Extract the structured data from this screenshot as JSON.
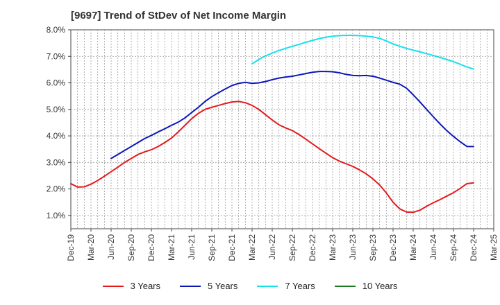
{
  "chart_data": {
    "type": "line",
    "title": "[9697]  Trend of StDev of Net Income Margin",
    "xlabel": "",
    "ylabel": "",
    "x_ticks": [
      "Dec-19",
      "Mar-20",
      "Jun-20",
      "Sep-20",
      "Dec-20",
      "Mar-21",
      "Jun-21",
      "Sep-21",
      "Dec-21",
      "Mar-22",
      "Jun-22",
      "Sep-22",
      "Dec-22",
      "Mar-23",
      "Jun-23",
      "Sep-23",
      "Dec-23",
      "Mar-24",
      "Jun-24",
      "Sep-24",
      "Dec-24",
      "Mar-25"
    ],
    "y_ticks": [
      "1.0%",
      "2.0%",
      "3.0%",
      "4.0%",
      "5.0%",
      "6.0%",
      "7.0%",
      "8.0%"
    ],
    "ylim": [
      0.5,
      8.0
    ],
    "grid": true,
    "legend_position": "bottom",
    "series": [
      {
        "name": "3 Years",
        "color": "#e31a1c",
        "x": [
          "Dec-19",
          "Jan-20",
          "Feb-20",
          "Mar-20",
          "Apr-20",
          "May-20",
          "Jun-20",
          "Jul-20",
          "Aug-20",
          "Sep-20",
          "Oct-20",
          "Nov-20",
          "Dec-20",
          "Jan-21",
          "Feb-21",
          "Mar-21",
          "Apr-21",
          "May-21",
          "Jun-21",
          "Jul-21",
          "Aug-21",
          "Sep-21",
          "Oct-21",
          "Nov-21",
          "Dec-21",
          "Jan-22",
          "Feb-22",
          "Mar-22",
          "Apr-22",
          "May-22",
          "Jun-22",
          "Jul-22",
          "Aug-22",
          "Sep-22",
          "Oct-22",
          "Nov-22",
          "Dec-22",
          "Jan-23",
          "Feb-23",
          "Mar-23",
          "Apr-23",
          "May-23",
          "Jun-23",
          "Jul-23",
          "Aug-23",
          "Sep-23",
          "Oct-23",
          "Nov-23",
          "Dec-23",
          "Jan-24",
          "Feb-24",
          "Mar-24",
          "Apr-24",
          "May-24",
          "Jun-24",
          "Jul-24",
          "Aug-24",
          "Sep-24",
          "Oct-24",
          "Nov-24",
          "Dec-24"
        ],
        "values": [
          2.2,
          2.07,
          2.08,
          2.18,
          2.32,
          2.48,
          2.65,
          2.82,
          3.0,
          3.15,
          3.3,
          3.4,
          3.48,
          3.6,
          3.75,
          3.92,
          4.15,
          4.4,
          4.65,
          4.85,
          5.0,
          5.08,
          5.15,
          5.22,
          5.28,
          5.3,
          5.25,
          5.15,
          5.0,
          4.8,
          4.6,
          4.42,
          4.3,
          4.2,
          4.05,
          3.88,
          3.7,
          3.52,
          3.35,
          3.18,
          3.05,
          2.95,
          2.85,
          2.72,
          2.57,
          2.38,
          2.15,
          1.85,
          1.5,
          1.25,
          1.13,
          1.12,
          1.2,
          1.35,
          1.48,
          1.6,
          1.73,
          1.86,
          2.02,
          2.2,
          2.23
        ]
      },
      {
        "name": "5 Years",
        "color": "#0a17b8",
        "x": [
          "Dec-19",
          "Jan-20",
          "Feb-20",
          "Mar-20",
          "Apr-20",
          "May-20",
          "Jun-20",
          "Jul-20",
          "Aug-20",
          "Sep-20",
          "Oct-20",
          "Nov-20",
          "Dec-20",
          "Jan-21",
          "Feb-21",
          "Mar-21",
          "Apr-21",
          "May-21",
          "Jun-21",
          "Jul-21",
          "Aug-21",
          "Sep-21",
          "Oct-21",
          "Nov-21",
          "Dec-21",
          "Jan-22",
          "Feb-22",
          "Mar-22",
          "Apr-22",
          "May-22",
          "Jun-22",
          "Jul-22",
          "Aug-22",
          "Sep-22",
          "Oct-22",
          "Nov-22",
          "Dec-22",
          "Jan-23",
          "Feb-23",
          "Mar-23",
          "Apr-23",
          "May-23",
          "Jun-23",
          "Jul-23",
          "Aug-23",
          "Sep-23",
          "Oct-23",
          "Nov-23",
          "Dec-23",
          "Jan-24",
          "Feb-24",
          "Mar-24",
          "Apr-24",
          "May-24",
          "Jun-24",
          "Jul-24",
          "Aug-24",
          "Sep-24",
          "Oct-24",
          "Nov-24",
          "Dec-24"
        ],
        "values": [
          null,
          null,
          null,
          null,
          null,
          null,
          3.15,
          3.3,
          3.45,
          3.6,
          3.75,
          3.9,
          4.02,
          4.15,
          4.27,
          4.4,
          4.52,
          4.68,
          4.88,
          5.08,
          5.3,
          5.48,
          5.63,
          5.77,
          5.9,
          5.98,
          6.02,
          5.98,
          6.0,
          6.05,
          6.12,
          6.18,
          6.22,
          6.25,
          6.3,
          6.35,
          6.4,
          6.43,
          6.43,
          6.42,
          6.38,
          6.32,
          6.28,
          6.27,
          6.28,
          6.25,
          6.18,
          6.1,
          6.02,
          5.95,
          5.8,
          5.55,
          5.28,
          5.0,
          4.72,
          4.45,
          4.2,
          3.98,
          3.78,
          3.6,
          3.6
        ]
      },
      {
        "name": "7 Years",
        "color": "#16e0ec",
        "x": [
          "Mar-22",
          "Apr-22",
          "May-22",
          "Jun-22",
          "Jul-22",
          "Aug-22",
          "Sep-22",
          "Oct-22",
          "Nov-22",
          "Dec-22",
          "Jan-23",
          "Feb-23",
          "Mar-23",
          "Apr-23",
          "May-23",
          "Jun-23",
          "Jul-23",
          "Aug-23",
          "Sep-23",
          "Oct-23",
          "Nov-23",
          "Dec-23",
          "Jan-24",
          "Feb-24",
          "Mar-24",
          "Apr-24",
          "May-24",
          "Jun-24",
          "Jul-24",
          "Aug-24",
          "Sep-24",
          "Oct-24",
          "Nov-24",
          "Dec-24"
        ],
        "values": [
          6.72,
          6.88,
          7.02,
          7.12,
          7.22,
          7.3,
          7.38,
          7.45,
          7.53,
          7.6,
          7.67,
          7.72,
          7.76,
          7.78,
          7.79,
          7.79,
          7.78,
          7.76,
          7.73,
          7.68,
          7.58,
          7.47,
          7.38,
          7.3,
          7.23,
          7.17,
          7.1,
          7.03,
          6.96,
          6.88,
          6.8,
          6.7,
          6.6,
          6.52
        ]
      },
      {
        "name": "10 Years",
        "color": "#1f7a1f",
        "x": [],
        "values": []
      }
    ]
  }
}
